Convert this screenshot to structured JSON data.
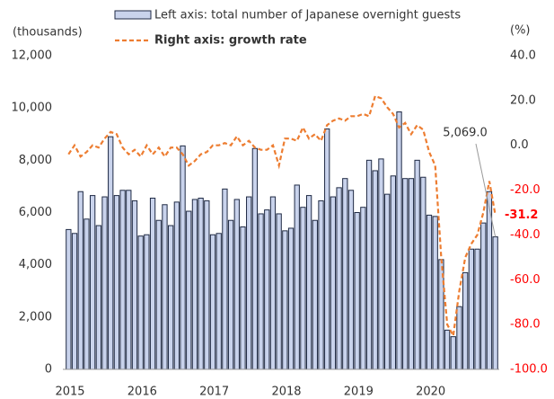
{
  "chart_data": {
    "type": "bar-line",
    "y_label": "(thousands)",
    "y2_label": "(%)",
    "categories": [
      "2015",
      null,
      null,
      null,
      null,
      null,
      null,
      null,
      null,
      null,
      null,
      null,
      "2016",
      null,
      null,
      null,
      null,
      null,
      null,
      null,
      null,
      null,
      null,
      null,
      "2017",
      null,
      null,
      null,
      null,
      null,
      null,
      null,
      null,
      null,
      null,
      null,
      "2018",
      null,
      null,
      null,
      null,
      null,
      null,
      null,
      null,
      null,
      null,
      null,
      "2019",
      null,
      null,
      null,
      null,
      null,
      null,
      null,
      null,
      null,
      null,
      null,
      "2020",
      null,
      null,
      null,
      null,
      null,
      null,
      null,
      null,
      null,
      null,
      null
    ],
    "series": [
      {
        "name": "Left axis: total number of Japanese overnight guests",
        "color": "#c9d3ec",
        "stroke": "#1f2a44",
        "values": [
          5350,
          5200,
          6800,
          5750,
          6650,
          5500,
          6600,
          8900,
          6650,
          6850,
          6850,
          6450,
          5100,
          5150,
          6550,
          5700,
          6300,
          5500,
          6400,
          8550,
          6050,
          6500,
          6550,
          6450,
          5150,
          5200,
          6900,
          5700,
          6500,
          5450,
          6600,
          8450,
          5950,
          6100,
          6600,
          5950,
          5300,
          5400,
          7050,
          6200,
          6650,
          5700,
          6450,
          9200,
          6600,
          6950,
          7300,
          6850,
          6000,
          6200,
          8000,
          7600,
          8050,
          6700,
          7400,
          9850,
          7300,
          7300,
          8000,
          7350,
          5900,
          5850,
          4200,
          1500,
          1250,
          2400,
          3700,
          4600,
          4600,
          5600,
          6800,
          5069
        ],
        "value_labels": [
          null,
          null,
          null,
          null,
          null,
          null,
          null,
          null,
          null,
          null,
          null,
          null,
          null,
          null,
          null,
          null,
          null,
          null,
          null,
          null,
          null,
          null,
          null,
          null,
          null,
          null,
          null,
          null,
          null,
          null,
          null,
          null,
          null,
          null,
          null,
          null,
          null,
          null,
          null,
          null,
          null,
          null,
          null,
          null,
          null,
          null,
          null,
          null,
          null,
          null,
          null,
          null,
          null,
          null,
          null,
          null,
          null,
          null,
          null,
          null,
          null,
          null,
          null,
          null,
          null,
          null,
          null,
          null,
          null,
          null,
          null,
          "5,069.0"
        ]
      },
      {
        "name": "Right axis: growth rate",
        "axis": "y2",
        "color": "#ed7d31",
        "values": [
          -4,
          0,
          -5,
          -3,
          0,
          -1,
          3,
          6,
          5,
          -1,
          -4,
          -2,
          -5,
          0,
          -4,
          -1,
          -5,
          -1,
          -1,
          -4,
          -9,
          -7,
          -4,
          -3,
          0,
          0,
          1,
          0,
          4,
          0,
          2,
          -1,
          -2,
          -2,
          0,
          -9,
          3,
          3,
          2,
          8,
          3,
          5,
          2,
          9,
          11,
          12,
          11,
          13,
          13,
          14,
          13,
          22,
          21,
          17,
          14,
          8,
          10,
          5,
          9,
          7,
          -3,
          -9,
          -50,
          -80,
          -85,
          -65,
          -50,
          -44,
          -40,
          -30,
          -16,
          -31.2
        ],
        "value_labels": [
          null,
          null,
          null,
          null,
          null,
          null,
          null,
          null,
          null,
          null,
          null,
          null,
          null,
          null,
          null,
          null,
          null,
          null,
          null,
          null,
          null,
          null,
          null,
          null,
          null,
          null,
          null,
          null,
          null,
          null,
          null,
          null,
          null,
          null,
          null,
          null,
          null,
          null,
          null,
          null,
          null,
          null,
          null,
          null,
          null,
          null,
          null,
          null,
          null,
          null,
          null,
          null,
          null,
          null,
          null,
          null,
          null,
          null,
          null,
          null,
          null,
          null,
          null,
          null,
          null,
          null,
          null,
          null,
          null,
          null,
          null,
          "-31.2"
        ]
      }
    ],
    "ylim": [
      0,
      12000
    ],
    "yticks": [
      0,
      {
        "value": 2000,
        "label": "2,000"
      },
      {
        "value": 4000,
        "label": "4,000"
      },
      {
        "value": 6000,
        "label": "6,000"
      },
      {
        "value": 8000,
        "label": "8,000"
      },
      {
        "value": 10000,
        "label": "10,000"
      },
      {
        "value": 12000,
        "label": "12,000"
      }
    ],
    "y2lim": [
      -100,
      40
    ],
    "y2ticks": [
      {
        "value": -100,
        "label": "-100.0"
      },
      {
        "value": -80,
        "label": "-80.0"
      },
      {
        "value": -60,
        "label": "-60.0"
      },
      {
        "value": -40,
        "label": "-40.0"
      },
      {
        "value": -20,
        "label": "-20.0"
      },
      {
        "value": 0,
        "label": "0.0"
      },
      {
        "value": 20,
        "label": "20.0"
      },
      {
        "value": 40,
        "label": "40.0"
      }
    ],
    "negative_tick_color": "#ff0000"
  }
}
